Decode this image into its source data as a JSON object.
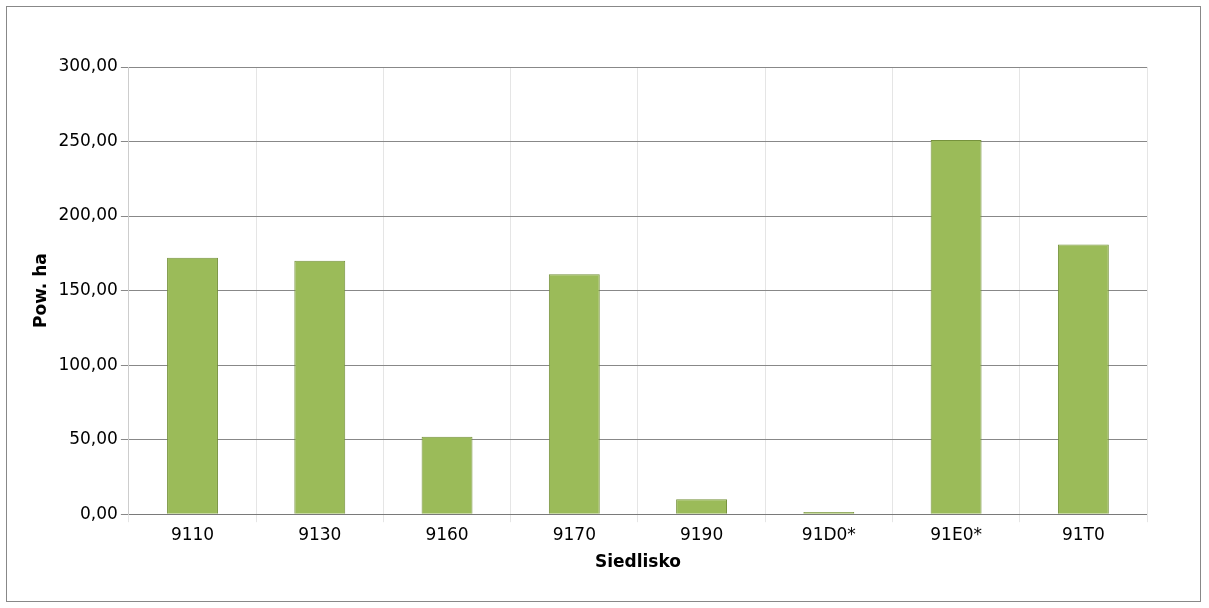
{
  "chart_data": {
    "type": "bar",
    "xlabel": "Siedlisko",
    "ylabel": "Pow. ha",
    "categories": [
      "9110",
      "9130",
      "9160",
      "9170",
      "9190",
      "91D0*",
      "91E0*",
      "91T0"
    ],
    "values": [
      172,
      170,
      52,
      161,
      10,
      1.5,
      251,
      181
    ],
    "color": "#9bbb59",
    "ylim": [
      0,
      300
    ],
    "yticks": [
      {
        "value": 0,
        "label": "0,00"
      },
      {
        "value": 50,
        "label": "50,00"
      },
      {
        "value": 100,
        "label": "100,00"
      },
      {
        "value": 150,
        "label": "150,00"
      },
      {
        "value": 200,
        "label": "200,00"
      },
      {
        "value": 250,
        "label": "250,00"
      },
      {
        "value": 300,
        "label": "300,00"
      }
    ],
    "grid": true,
    "legend": false
  }
}
